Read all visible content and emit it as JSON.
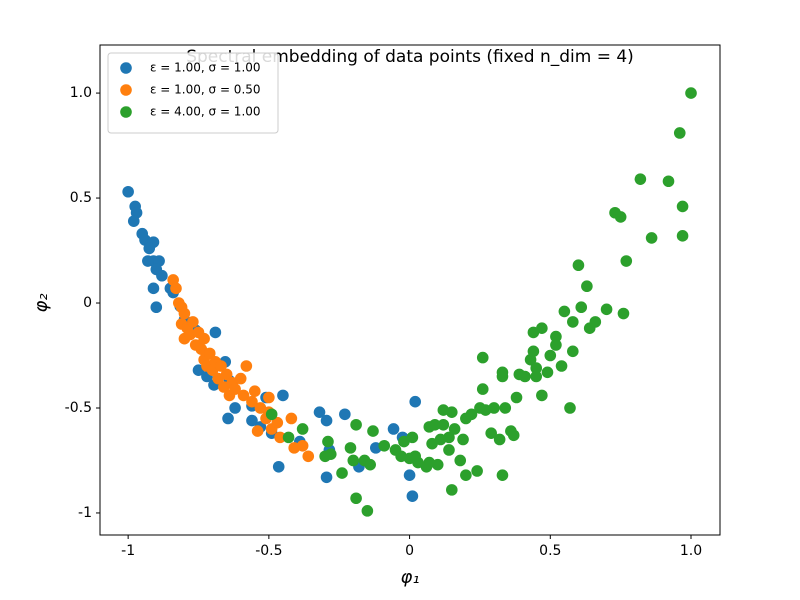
{
  "chart_data": {
    "type": "scatter",
    "title": "Spectral embedding of data points (fixed n_dim = 4)",
    "x_label": "φ₁",
    "y_label": "φ₂",
    "xlim": [
      -1.1,
      1.103
    ],
    "ylim": [
      -1.105,
      1.229
    ],
    "xticks": [
      -1,
      -0.5,
      0,
      0.5,
      {
        "value": 1,
        "label": "1.0"
      }
    ],
    "yticks": [
      {
        "value": 1,
        "label": "1.0"
      },
      0.5,
      0,
      -0.5,
      -1
    ],
    "legend": "upper-left",
    "grid": false,
    "series": [
      {
        "name": "ε = 1.00, σ = 1.00",
        "color": "#1f77b4",
        "x": [
          -1.0,
          -0.975,
          -0.97,
          -0.98,
          -0.95,
          -0.94,
          -0.92,
          -0.91,
          -0.925,
          -0.93,
          -0.91,
          -0.89,
          -0.9,
          -0.88,
          -0.91,
          -0.85,
          -0.84,
          -0.9,
          -0.815,
          -0.8,
          -0.775,
          -0.76,
          -0.69,
          -0.75,
          -0.72,
          -0.695,
          -0.655,
          -0.64,
          -0.645,
          -0.62,
          -0.56,
          -0.56,
          -0.53,
          -0.49,
          -0.51,
          -0.45,
          -0.465,
          -0.39,
          -0.32,
          -0.295,
          -0.295,
          -0.23,
          -0.285,
          -0.18,
          -0.12,
          -0.057,
          0.02,
          0.0,
          0.01,
          -0.025
        ],
        "values": [
          0.53,
          0.46,
          0.43,
          0.39,
          0.33,
          0.3,
          0.28,
          0.29,
          0.26,
          0.2,
          0.2,
          0.2,
          0.16,
          0.13,
          0.07,
          0.07,
          0.05,
          -0.02,
          -0.015,
          -0.08,
          -0.11,
          -0.13,
          -0.14,
          -0.32,
          -0.35,
          -0.39,
          -0.28,
          -0.37,
          -0.55,
          -0.5,
          -0.49,
          -0.56,
          -0.59,
          -0.62,
          -0.45,
          -0.44,
          -0.78,
          -0.66,
          -0.52,
          -0.56,
          -0.83,
          -0.53,
          -0.7,
          -0.78,
          -0.69,
          -0.6,
          -0.47,
          -0.82,
          -0.92,
          -0.64
        ]
      },
      {
        "name": "ε = 1.00, σ = 0.50",
        "color": "#ff7f0e",
        "x": [
          -0.84,
          -0.83,
          -0.82,
          -0.81,
          -0.8,
          -0.81,
          -0.79,
          -0.8,
          -0.78,
          -0.77,
          -0.76,
          -0.75,
          -0.74,
          -0.73,
          -0.73,
          -0.72,
          -0.71,
          -0.7,
          -0.69,
          -0.68,
          -0.67,
          -0.66,
          -0.65,
          -0.64,
          -0.63,
          -0.62,
          -0.6,
          -0.59,
          -0.58,
          -0.56,
          -0.55,
          -0.53,
          -0.51,
          -0.5,
          -0.49,
          -0.47,
          -0.46,
          -0.42,
          -0.41,
          -0.36,
          -0.38,
          -0.54,
          -0.5
        ],
        "values": [
          0.11,
          0.07,
          0.0,
          -0.02,
          -0.05,
          -0.1,
          -0.12,
          -0.17,
          -0.15,
          -0.09,
          -0.2,
          -0.14,
          -0.22,
          -0.27,
          -0.17,
          -0.3,
          -0.24,
          -0.32,
          -0.28,
          -0.36,
          -0.3,
          -0.4,
          -0.34,
          -0.44,
          -0.38,
          -0.41,
          -0.36,
          -0.44,
          -0.3,
          -0.47,
          -0.42,
          -0.5,
          -0.55,
          -0.45,
          -0.6,
          -0.57,
          -0.64,
          -0.55,
          -0.69,
          -0.73,
          -0.68,
          -0.61,
          -0.52
        ]
      },
      {
        "name": "ε = 4.00, σ = 1.00",
        "color": "#2ca02c",
        "x": [
          -0.49,
          -0.43,
          -0.38,
          -0.29,
          -0.28,
          -0.3,
          -0.24,
          -0.21,
          -0.2,
          -0.19,
          -0.19,
          -0.15,
          -0.16,
          -0.14,
          -0.13,
          -0.09,
          -0.05,
          -0.03,
          -0.02,
          0.0,
          0.01,
          0.02,
          0.03,
          0.06,
          0.07,
          0.07,
          0.08,
          0.09,
          0.1,
          0.11,
          0.12,
          0.12,
          0.14,
          0.14,
          0.15,
          0.15,
          0.16,
          0.18,
          0.19,
          0.2,
          0.2,
          0.22,
          0.24,
          0.25,
          0.26,
          0.26,
          0.27,
          0.29,
          0.3,
          0.32,
          0.33,
          0.33,
          0.33,
          0.34,
          0.36,
          0.37,
          0.38,
          0.39,
          0.41,
          0.43,
          0.44,
          0.44,
          0.45,
          0.45,
          0.47,
          0.47,
          0.49,
          0.5,
          0.52,
          0.52,
          0.54,
          0.55,
          0.57,
          0.58,
          0.58,
          0.6,
          0.61,
          0.63,
          0.64,
          0.66,
          0.7,
          0.73,
          0.75,
          0.76,
          0.77,
          0.82,
          0.86,
          0.92,
          0.96,
          0.97,
          0.97,
          1.0
        ],
        "values": [
          -0.53,
          -0.64,
          -0.6,
          -0.66,
          -0.72,
          -0.73,
          -0.81,
          -0.69,
          -0.75,
          -0.93,
          -0.58,
          -0.99,
          -0.75,
          -0.77,
          -0.61,
          -0.68,
          -0.7,
          -0.73,
          -0.66,
          -0.74,
          -0.64,
          -0.73,
          -0.76,
          -0.78,
          -0.59,
          -0.76,
          -0.67,
          -0.58,
          -0.77,
          -0.65,
          -0.51,
          -0.58,
          -0.7,
          -0.64,
          -0.89,
          -0.52,
          -0.6,
          -0.75,
          -0.65,
          -0.82,
          -0.55,
          -0.53,
          -0.8,
          -0.5,
          -0.41,
          -0.26,
          -0.51,
          -0.62,
          -0.5,
          -0.65,
          -0.33,
          -0.35,
          -0.82,
          -0.5,
          -0.61,
          -0.63,
          -0.45,
          -0.34,
          -0.35,
          -0.27,
          -0.14,
          -0.23,
          -0.31,
          -0.35,
          -0.12,
          -0.44,
          -0.33,
          -0.25,
          -0.16,
          -0.2,
          -0.3,
          -0.04,
          -0.5,
          -0.09,
          -0.23,
          0.18,
          -0.02,
          0.08,
          -0.12,
          -0.09,
          -0.03,
          0.43,
          0.41,
          -0.05,
          0.2,
          0.59,
          0.31,
          0.58,
          0.81,
          0.46,
          0.32,
          1.0
        ]
      }
    ]
  }
}
